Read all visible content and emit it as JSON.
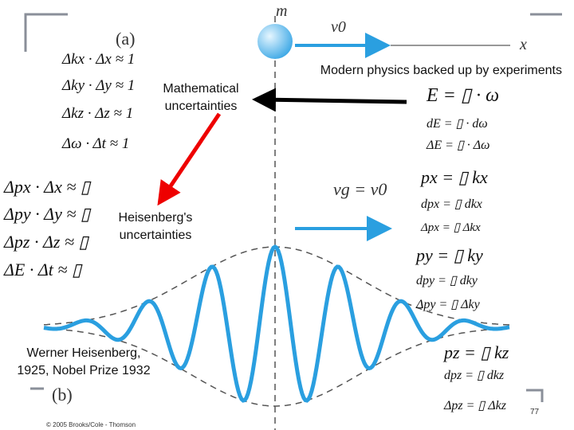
{
  "figure_labels": {
    "mass": "m",
    "velocity": "v0",
    "axis": "x",
    "part_a": "(a)",
    "part_b": "(b)",
    "group_velocity": "vg  =  v0"
  },
  "annotations": {
    "modern": "Modern physics backed up by experiments",
    "mathematical": [
      "Mathematical",
      "uncertainties"
    ],
    "heisenberg": [
      "Heisenberg's",
      "uncertainties"
    ],
    "person": [
      "Werner Heisenberg,",
      "1925, Nobel Prize 1932"
    ]
  },
  "math_uncertainties": [
    "Δkx · Δx ≈ 1",
    "Δky · Δy ≈ 1",
    "Δkz · Δz ≈ 1",
    "Δω · Δt ≈ 1"
  ],
  "heisenberg_uncertainties": [
    "Δpx · Δx ≈ ▯",
    "Δpy · Δy ≈ ▯",
    "Δpz · Δz ≈ ▯",
    "ΔE · Δt ≈ ▯"
  ],
  "energy_relations": [
    "E = ▯ · ω",
    "dE = ▯ · dω",
    "ΔE = ▯ · Δω"
  ],
  "px_relations": [
    "px = ▯ kx",
    "dpx = ▯ dkx",
    "Δpx = ▯ Δkx"
  ],
  "py_relations": [
    "py = ▯ ky",
    "dpy = ▯ dky",
    "Δpy = ▯ Δky"
  ],
  "pz_relations": [
    "pz = ▯ kz",
    "dpz = ▯ dkz",
    "Δpz = ▯ Δkz"
  ],
  "copyright": "© 2005 Brooks/Cole - Thomson",
  "page_number": "77"
}
